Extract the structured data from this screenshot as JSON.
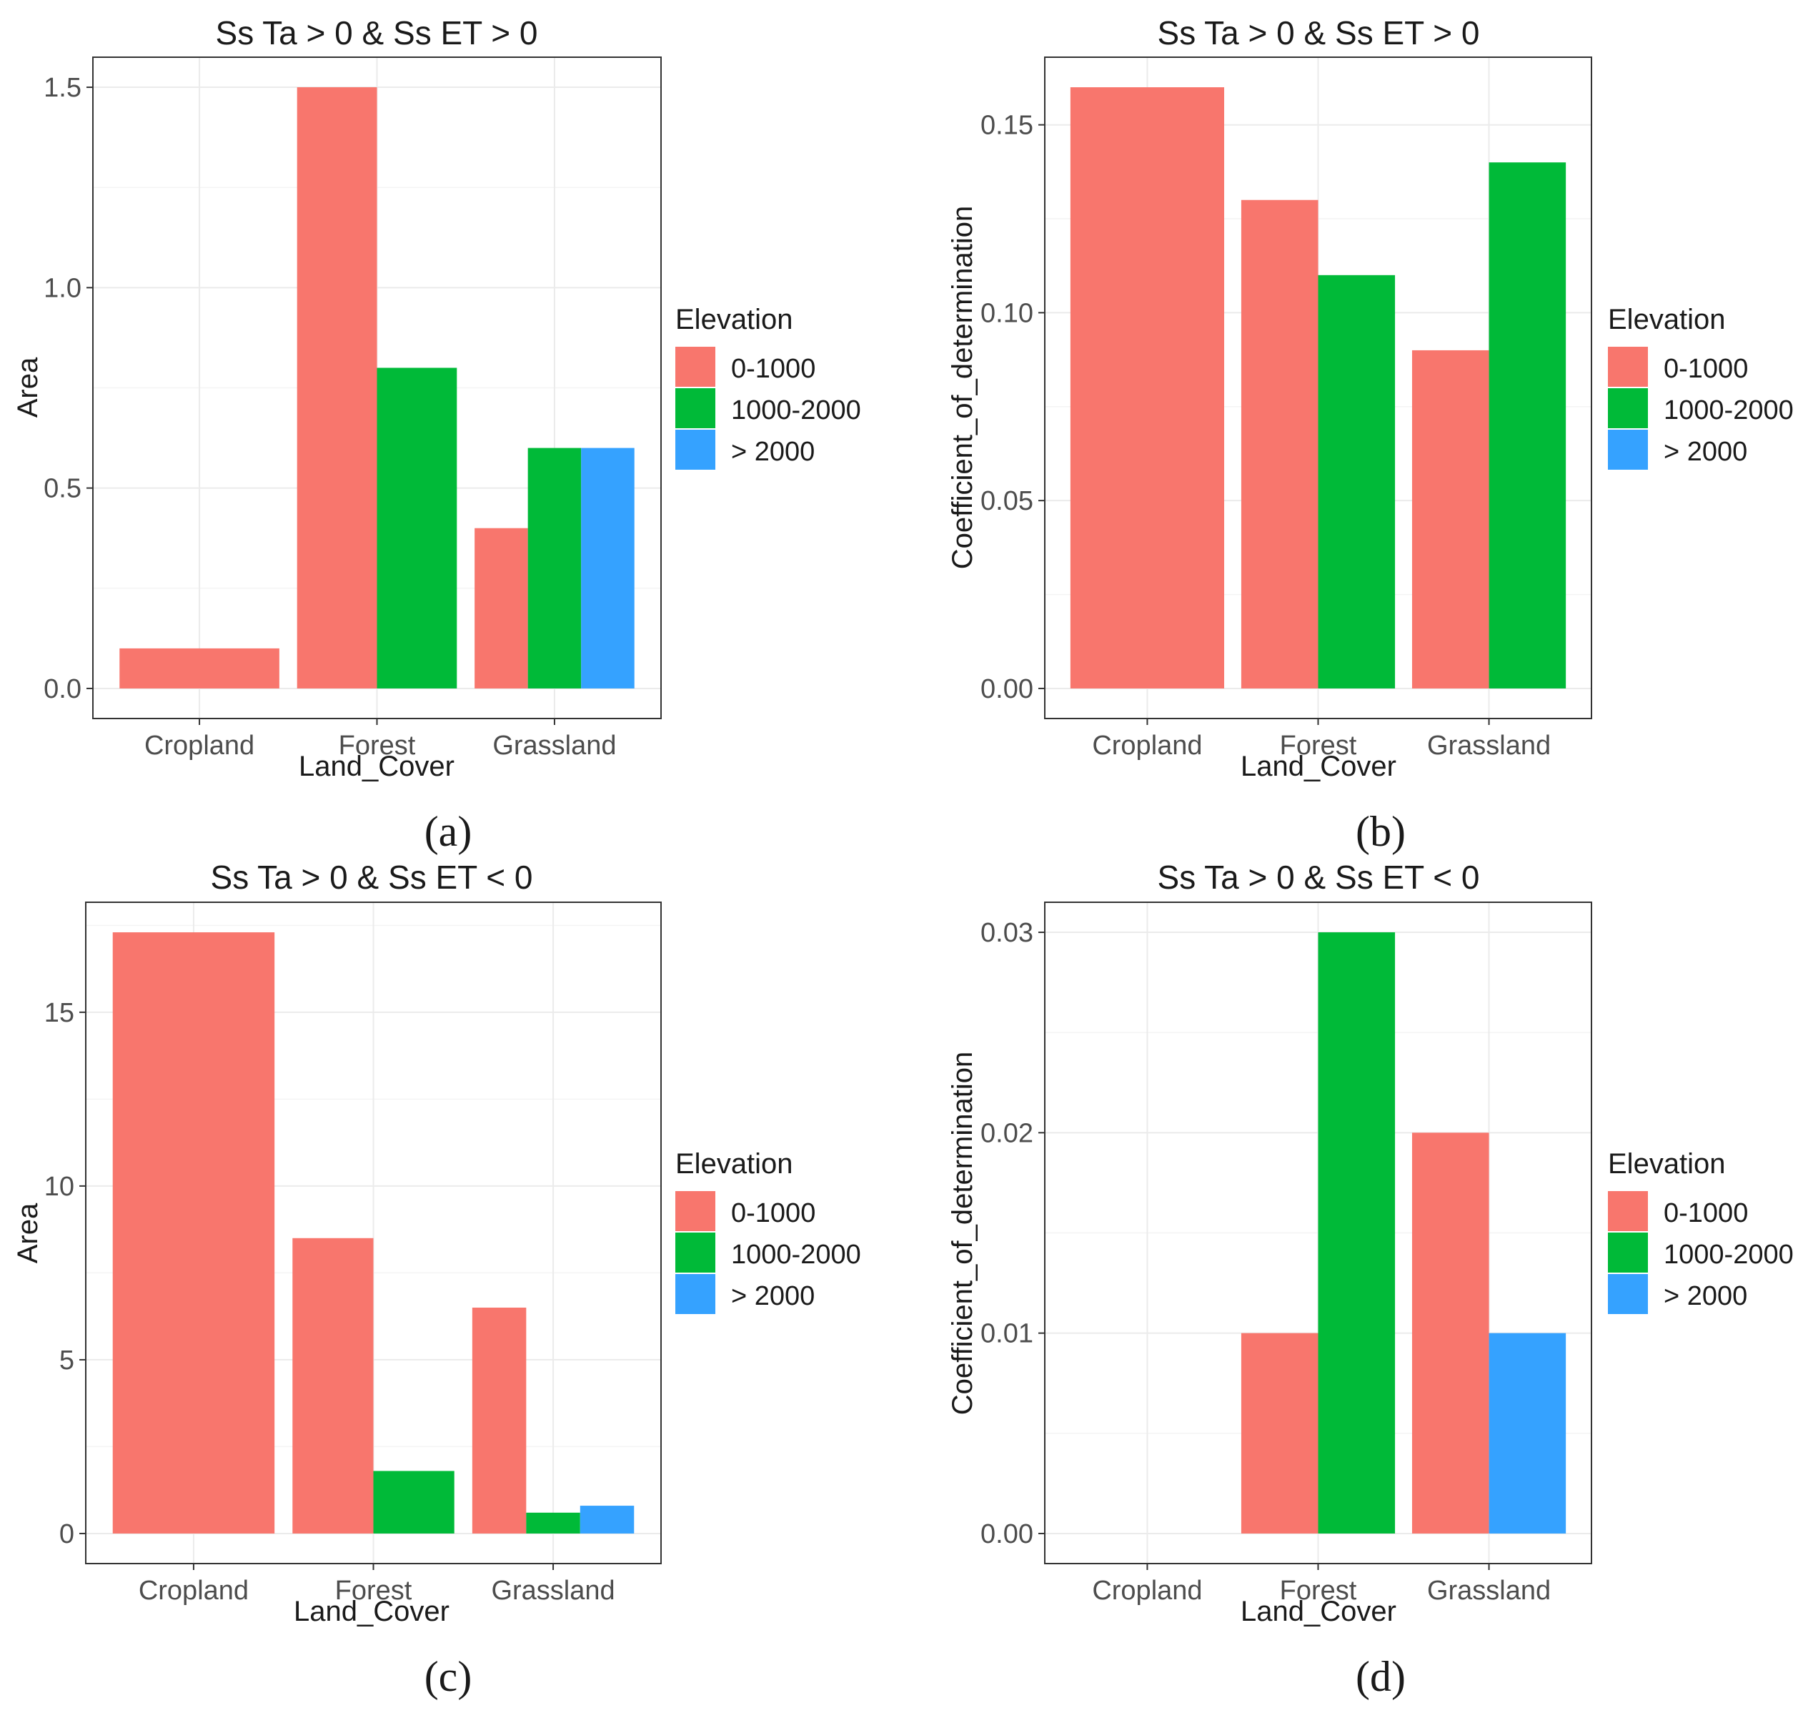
{
  "legend": {
    "title": "Elevation",
    "entries": [
      {
        "label": "0-1000",
        "color": "#F8766D"
      },
      {
        "label": "1000-2000",
        "color": "#00BA38"
      },
      {
        "label": "> 2000",
        "color": "#35A2FF"
      }
    ]
  },
  "chart_data": [
    {
      "type": "bar",
      "panel_label": "(a)",
      "title": "Ss Ta > 0 & Ss ET > 0",
      "xlabel": "Land_Cover",
      "ylabel": "Area",
      "categories": [
        "Cropland",
        "Forest",
        "Grassland"
      ],
      "series": [
        {
          "name": "0-1000",
          "values": [
            0.1,
            1.5,
            0.4
          ]
        },
        {
          "name": "1000-2000",
          "values": [
            null,
            0.8,
            0.6
          ]
        },
        {
          "name": "> 2000",
          "values": [
            null,
            null,
            0.6
          ]
        }
      ],
      "ylim": [
        -0.075,
        1.575
      ],
      "yticks": [
        0.0,
        0.5,
        1.0,
        1.5
      ],
      "ytick_labels": [
        "0.0",
        "0.5",
        "1.0",
        "1.5"
      ]
    },
    {
      "type": "bar",
      "panel_label": "(b)",
      "title": "Ss Ta > 0 & Ss ET > 0",
      "xlabel": "Land_Cover",
      "ylabel": "Coefficient_of_determination",
      "categories": [
        "Cropland",
        "Forest",
        "Grassland"
      ],
      "series": [
        {
          "name": "0-1000",
          "values": [
            0.16,
            0.13,
            0.09
          ]
        },
        {
          "name": "1000-2000",
          "values": [
            null,
            0.11,
            0.14
          ]
        },
        {
          "name": "> 2000",
          "values": [
            null,
            null,
            null
          ]
        }
      ],
      "ylim": [
        -0.008,
        0.168
      ],
      "yticks": [
        0.0,
        0.05,
        0.1,
        0.15
      ],
      "ytick_labels": [
        "0.00",
        "0.05",
        "0.10",
        "0.15"
      ]
    },
    {
      "type": "bar",
      "panel_label": "(c)",
      "title": "Ss Ta > 0 & Ss ET < 0",
      "xlabel": "Land_Cover",
      "ylabel": "Area",
      "categories": [
        "Cropland",
        "Forest",
        "Grassland"
      ],
      "series": [
        {
          "name": "0-1000",
          "values": [
            17.3,
            8.5,
            6.5
          ]
        },
        {
          "name": "1000-2000",
          "values": [
            null,
            1.8,
            0.6
          ]
        },
        {
          "name": "> 2000",
          "values": [
            null,
            null,
            0.8
          ]
        }
      ],
      "ylim": [
        -0.865,
        18.165
      ],
      "yticks": [
        0,
        5,
        10,
        15
      ],
      "ytick_labels": [
        "0",
        "5",
        "10",
        "15"
      ]
    },
    {
      "type": "bar",
      "panel_label": "(d)",
      "title": "Ss Ta > 0 & Ss ET < 0",
      "xlabel": "Land_Cover",
      "ylabel": "Coefficient_of_determination",
      "categories": [
        "Cropland",
        "Forest",
        "Grassland"
      ],
      "series": [
        {
          "name": "0-1000",
          "values": [
            null,
            0.01,
            0.02
          ]
        },
        {
          "name": "1000-2000",
          "values": [
            null,
            0.03,
            null
          ]
        },
        {
          "name": "> 2000",
          "values": [
            null,
            null,
            0.01
          ]
        }
      ],
      "ylim": [
        -0.0015,
        0.0315
      ],
      "yticks": [
        0.0,
        0.01,
        0.02,
        0.03
      ],
      "ytick_labels": [
        "0.00",
        "0.01",
        "0.02",
        "0.03"
      ]
    }
  ]
}
